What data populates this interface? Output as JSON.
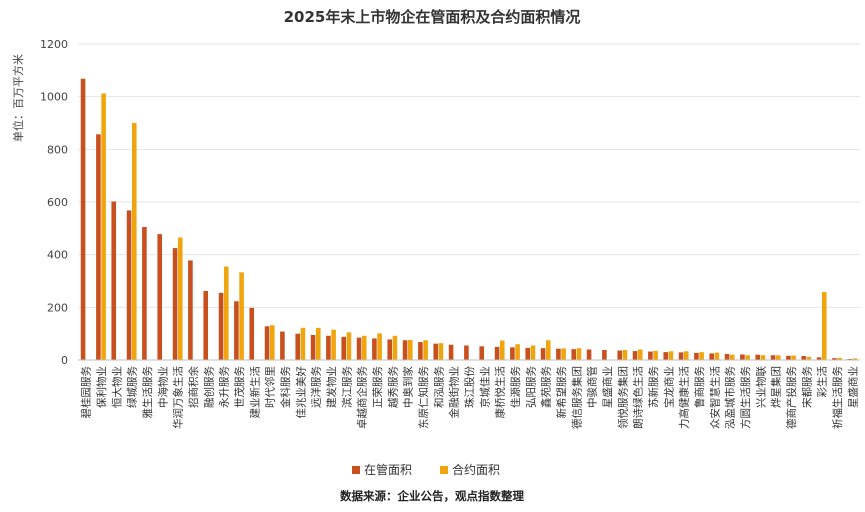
{
  "chart_data": {
    "type": "bar",
    "title": "2025年末上市物企在管面积及合约面积情况",
    "ylabel": "单位：百万平方米",
    "source": "数据来源：企业公告，观点指数整理",
    "ylim": [
      0,
      1200
    ],
    "yticks": [
      0,
      200,
      400,
      600,
      800,
      1000,
      1200
    ],
    "grid": true,
    "legend_position": "bottom",
    "colors": {
      "在管面积": "#C8501E",
      "合约面积": "#F0A50F"
    },
    "categories": [
      "碧桂园服务",
      "保利物业",
      "恒大物业",
      "绿城服务",
      "雅生活服务",
      "中海物业",
      "华润万象生活",
      "招商积余",
      "融创服务",
      "永升服务",
      "世茂服务",
      "建业新生活",
      "时代邻里",
      "金科服务",
      "佳兆业美好",
      "远洋服务",
      "建发物业",
      "滨江服务",
      "卓越商企服务",
      "正荣服务",
      "越秀服务",
      "中奥到家",
      "东原仁知服务",
      "和泓服务",
      "金融街物业",
      "珠江股份",
      "京城佳业",
      "康桥悦生活",
      "佳源服务",
      "弘阳服务",
      "鑫苑服务",
      "新希望服务",
      "德信服务集团",
      "中骏商管",
      "星盛商业",
      "领悦服务集团",
      "朗诗绿色生活",
      "苏新服务",
      "宝龙商业",
      "力高健康生活",
      "鲁商服务",
      "众安智慧生活",
      "泓盈城市服务",
      "方圆生活服务",
      "兴业物联",
      "烨星集团",
      "德商产投服务",
      "宋都服务",
      "彩生活",
      "祈福生活服务",
      "星盛商业"
    ],
    "series": [
      {
        "name": "在管面积",
        "values": [
          1068,
          857,
          602,
          568,
          505,
          478,
          425,
          378,
          262,
          255,
          223,
          198,
          128,
          108,
          100,
          95,
          92,
          88,
          85,
          82,
          78,
          75,
          68,
          62,
          58,
          55,
          52,
          50,
          48,
          46,
          45,
          43,
          41,
          40,
          38,
          36,
          34,
          32,
          30,
          29,
          27,
          25,
          23,
          21,
          20,
          18,
          16,
          15,
          10,
          7,
          4
        ]
      },
      {
        "name": "合约面积",
        "values": [
          0,
          1012,
          0,
          900,
          0,
          0,
          465,
          0,
          0,
          355,
          333,
          0,
          132,
          0,
          122,
          122,
          115,
          105,
          92,
          101,
          92,
          76,
          75,
          64,
          0,
          0,
          0,
          74,
          60,
          55,
          75,
          44,
          45,
          0,
          0,
          38,
          40,
          35,
          33,
          33,
          30,
          28,
          20,
          18,
          18,
          18,
          17,
          12,
          258,
          8,
          6
        ]
      }
    ]
  }
}
